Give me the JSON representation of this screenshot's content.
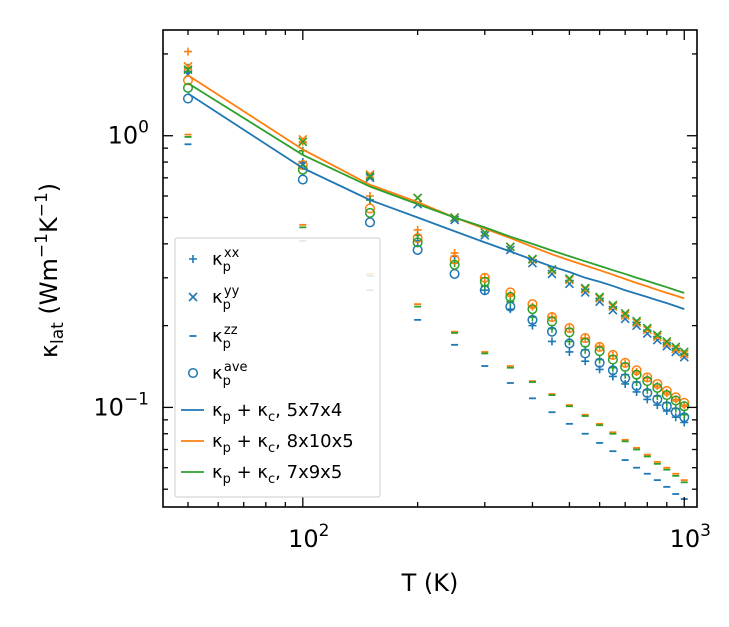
{
  "chart_data": {
    "type": "scatter",
    "xscale": "log",
    "yscale": "log",
    "xlabel": {
      "main": "T (K)"
    },
    "ylabel": {
      "kappa": "κ",
      "sub": "lat",
      "units_open": " (Wm",
      "exp1": "−1",
      "units_mid": "K",
      "exp2": "−1",
      "units_close": ")"
    },
    "xlim": [
      43,
      1080
    ],
    "ylim": [
      0.043,
      2.45
    ],
    "xticks": [
      {
        "value": 100,
        "base": "10",
        "exp": "2"
      },
      {
        "value": 1000,
        "base": "10",
        "exp": "3"
      }
    ],
    "yticks": [
      {
        "value": 0.1,
        "label": "10",
        "exp": "−1"
      },
      {
        "value": 1.0,
        "label": "10",
        "exp": "0"
      }
    ],
    "colors": {
      "blue": "#1f77b4",
      "orange": "#ff7f0e",
      "green": "#2ca02c"
    },
    "T": [
      50,
      100,
      150,
      200,
      250,
      300,
      350,
      400,
      450,
      500,
      550,
      600,
      650,
      700,
      750,
      800,
      850,
      900,
      950,
      1000
    ],
    "series": [
      {
        "name": "κp_xx_5x7x4",
        "marker": "plus",
        "color": "#1f77b4",
        "values": [
          1.72,
          0.8,
          0.58,
          0.41,
          0.36,
          0.27,
          0.23,
          0.2,
          0.175,
          0.16,
          0.148,
          0.138,
          0.13,
          0.122,
          0.114,
          0.107,
          0.102,
          0.097,
          0.092,
          0.088
        ]
      },
      {
        "name": "κp_xx_8x10x5",
        "marker": "plus",
        "color": "#ff7f0e",
        "values": [
          2.04,
          0.95,
          0.6,
          0.45,
          0.37,
          0.3,
          0.26,
          0.235,
          0.215,
          0.195,
          0.18,
          0.168,
          0.155,
          0.145,
          0.135,
          0.128,
          0.12,
          0.113,
          0.107,
          0.102
        ]
      },
      {
        "name": "κp_xx_7x9x5",
        "marker": "plus",
        "color": "#2ca02c",
        "values": [
          1.78,
          0.88,
          0.58,
          0.43,
          0.34,
          0.28,
          0.245,
          0.215,
          0.195,
          0.175,
          0.163,
          0.15,
          0.14,
          0.132,
          0.124,
          0.116,
          0.11,
          0.104,
          0.099,
          0.094
        ]
      },
      {
        "name": "κp_yy_5x7x4",
        "marker": "x",
        "color": "#1f77b4",
        "values": [
          1.68,
          0.78,
          0.7,
          0.56,
          0.49,
          0.43,
          0.38,
          0.34,
          0.31,
          0.285,
          0.265,
          0.245,
          0.228,
          0.212,
          0.2,
          0.187,
          0.177,
          0.168,
          0.16,
          0.153
        ]
      },
      {
        "name": "κp_yy_8x10x5",
        "marker": "x",
        "color": "#ff7f0e",
        "values": [
          1.8,
          0.97,
          0.72,
          0.59,
          0.5,
          0.44,
          0.39,
          0.35,
          0.32,
          0.295,
          0.272,
          0.252,
          0.235,
          0.218,
          0.205,
          0.193,
          0.182,
          0.172,
          0.164,
          0.157
        ]
      },
      {
        "name": "κp_yy_7x9x5",
        "marker": "x",
        "color": "#2ca02c",
        "values": [
          1.75,
          0.95,
          0.71,
          0.59,
          0.5,
          0.44,
          0.39,
          0.352,
          0.322,
          0.298,
          0.275,
          0.255,
          0.238,
          0.222,
          0.208,
          0.196,
          0.185,
          0.175,
          0.167,
          0.16
        ]
      },
      {
        "name": "κp_zz_5x7x4",
        "marker": "dash",
        "color": "#1f77b4",
        "values": [
          0.93,
          0.41,
          0.27,
          0.21,
          0.17,
          0.142,
          0.123,
          0.108,
          0.096,
          0.087,
          0.08,
          0.074,
          0.069,
          0.064,
          0.06,
          0.057,
          0.054,
          0.051,
          0.048,
          0.046
        ]
      },
      {
        "name": "κp_zz_8x10x5",
        "marker": "dash",
        "color": "#ff7f0e",
        "values": [
          1.01,
          0.47,
          0.31,
          0.24,
          0.19,
          0.16,
          0.142,
          0.125,
          0.112,
          0.102,
          0.094,
          0.087,
          0.081,
          0.076,
          0.071,
          0.067,
          0.063,
          0.06,
          0.057,
          0.054
        ]
      },
      {
        "name": "κp_zz_7x9x5",
        "marker": "dash",
        "color": "#2ca02c",
        "values": [
          0.99,
          0.46,
          0.305,
          0.235,
          0.188,
          0.158,
          0.14,
          0.124,
          0.111,
          0.101,
          0.093,
          0.086,
          0.08,
          0.075,
          0.07,
          0.066,
          0.062,
          0.059,
          0.056,
          0.053
        ]
      },
      {
        "name": "κp_ave_5x7x4",
        "marker": "circle",
        "color": "#1f77b4",
        "values": [
          1.37,
          0.69,
          0.48,
          0.38,
          0.31,
          0.27,
          0.235,
          0.21,
          0.19,
          0.172,
          0.158,
          0.146,
          0.137,
          0.128,
          0.12,
          0.113,
          0.107,
          0.101,
          0.096,
          0.092
        ]
      },
      {
        "name": "κp_ave_8x10x5",
        "marker": "circle",
        "color": "#ff7f0e",
        "values": [
          1.6,
          0.78,
          0.54,
          0.42,
          0.35,
          0.3,
          0.265,
          0.24,
          0.215,
          0.196,
          0.18,
          0.167,
          0.156,
          0.146,
          0.137,
          0.129,
          0.122,
          0.115,
          0.109,
          0.104
        ]
      },
      {
        "name": "κp_ave_7x9x5",
        "marker": "circle",
        "color": "#2ca02c",
        "values": [
          1.5,
          0.75,
          0.52,
          0.405,
          0.335,
          0.29,
          0.255,
          0.23,
          0.207,
          0.189,
          0.173,
          0.161,
          0.15,
          0.141,
          0.132,
          0.125,
          0.118,
          0.111,
          0.106,
          0.101
        ]
      },
      {
        "name": "κp+κc_5x7x4",
        "marker": "line",
        "color": "#1f77b4",
        "values": [
          1.43,
          0.76,
          0.58,
          0.5,
          0.445,
          0.405,
          0.375,
          0.35,
          0.33,
          0.315,
          0.3,
          0.29,
          0.28,
          0.27,
          0.262,
          0.255,
          0.248,
          0.242,
          0.236,
          0.23
        ]
      },
      {
        "name": "κp+κc_8x10x5",
        "marker": "line",
        "color": "#ff7f0e",
        "values": [
          1.67,
          0.89,
          0.66,
          0.57,
          0.5,
          0.455,
          0.42,
          0.39,
          0.366,
          0.348,
          0.333,
          0.32,
          0.308,
          0.297,
          0.287,
          0.279,
          0.271,
          0.264,
          0.258,
          0.252
        ]
      },
      {
        "name": "κp+κc_7x9x5",
        "marker": "line",
        "color": "#2ca02c",
        "values": [
          1.56,
          0.85,
          0.65,
          0.56,
          0.5,
          0.46,
          0.425,
          0.4,
          0.378,
          0.36,
          0.345,
          0.332,
          0.32,
          0.31,
          0.3,
          0.292,
          0.284,
          0.277,
          0.27,
          0.264
        ]
      }
    ],
    "legend": {
      "placement": "center-left",
      "entries": [
        {
          "marker": "plus",
          "color": "#1f77b4",
          "kappa": "κ",
          "sub": "p",
          "sup": "xx",
          "text": ""
        },
        {
          "marker": "x",
          "color": "#1f77b4",
          "kappa": "κ",
          "sub": "p",
          "sup": "yy",
          "text": ""
        },
        {
          "marker": "dash",
          "color": "#1f77b4",
          "kappa": "κ",
          "sub": "p",
          "sup": "zz",
          "text": ""
        },
        {
          "marker": "circle",
          "color": "#1f77b4",
          "kappa": "κ",
          "sub": "p",
          "sup": "ave",
          "text": ""
        },
        {
          "marker": "line",
          "color": "#1f77b4",
          "kappa": "κ",
          "sub": "p",
          "plus": " + κ",
          "sub2": "c",
          "text": ", 5x7x4"
        },
        {
          "marker": "line",
          "color": "#ff7f0e",
          "kappa": "κ",
          "sub": "p",
          "plus": " + κ",
          "sub2": "c",
          "text": ", 8x10x5"
        },
        {
          "marker": "line",
          "color": "#2ca02c",
          "kappa": "κ",
          "sub": "p",
          "plus": " + κ",
          "sub2": "c",
          "text": ", 7x9x5"
        }
      ]
    }
  }
}
